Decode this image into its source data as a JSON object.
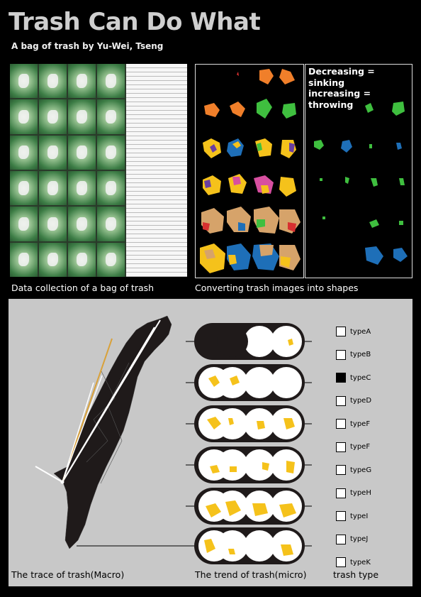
{
  "header": {
    "title": "Trash Can Do What",
    "subtitle": "A bag of trash by Yu-Wei, Tseng"
  },
  "sections": {
    "data_collection_caption": "Data collection of a bag of trash",
    "shapes_caption": "Converting trash images into shapes",
    "decrease_label": "Decreasing = sinking",
    "increase_label": "increasing = throwing",
    "macro_caption": "The trace of trash(Macro)",
    "micro_caption": "The trend of trash(micro)",
    "type_caption": "trash type"
  },
  "trash_types": [
    {
      "label": "typeA",
      "filled": false
    },
    {
      "label": "typeB",
      "filled": false
    },
    {
      "label": "typeC",
      "filled": true
    },
    {
      "label": "typeD",
      "filled": false
    },
    {
      "label": "typeF",
      "filled": false
    },
    {
      "label": "typeF",
      "filled": false
    },
    {
      "label": "typeG",
      "filled": false
    },
    {
      "label": "typeH",
      "filled": false
    },
    {
      "label": "typeI",
      "filled": false
    },
    {
      "label": "typeJ",
      "filled": false
    },
    {
      "label": "typeK",
      "filled": false
    }
  ],
  "colors": {
    "orange": "#f07f2a",
    "green": "#3fbf3f",
    "yellow": "#f5c21b",
    "blue": "#1e6fb8",
    "purple": "#6a3fa0",
    "pink": "#d84fa0",
    "tan": "#d6a36a",
    "red": "#d83030",
    "panel_gray": "#c8c8c8",
    "map_black": "#1f1a1a"
  }
}
